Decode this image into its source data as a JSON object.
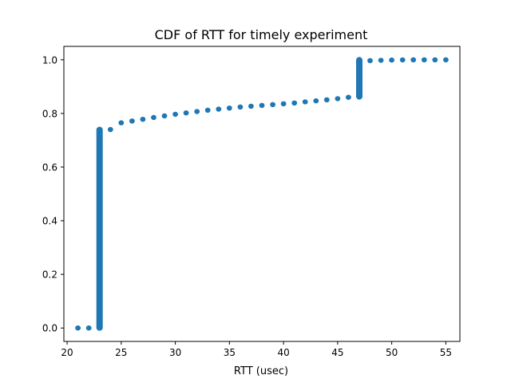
{
  "chart_data": {
    "type": "scatter",
    "title": "CDF of RTT for timely experiment",
    "xlabel": "RTT (usec)",
    "ylabel": "",
    "xlim": [
      19.7,
      56.3
    ],
    "ylim": [
      -0.05,
      1.05
    ],
    "xticks": [
      "20",
      "25",
      "30",
      "35",
      "40",
      "45",
      "50",
      "55"
    ],
    "xtick_values": [
      20,
      25,
      30,
      35,
      40,
      45,
      50,
      55
    ],
    "yticks": [
      "0.0",
      "0.2",
      "0.4",
      "0.6",
      "0.8",
      "1.0"
    ],
    "ytick_values": [
      0.0,
      0.2,
      0.4,
      0.6,
      0.8,
      1.0
    ],
    "grid": false,
    "marker_color": "#1f77b4",
    "series": [
      {
        "points": [
          [
            21,
            0.0
          ],
          [
            22,
            0.0
          ],
          [
            23,
            0.0
          ],
          [
            23,
            0.74
          ],
          [
            24,
            0.74
          ],
          [
            25,
            0.765
          ],
          [
            26,
            0.772
          ],
          [
            27,
            0.778
          ],
          [
            28,
            0.785
          ],
          [
            29,
            0.791
          ],
          [
            30,
            0.797
          ],
          [
            31,
            0.802
          ],
          [
            32,
            0.807
          ],
          [
            33,
            0.812
          ],
          [
            34,
            0.816
          ],
          [
            35,
            0.82
          ],
          [
            36,
            0.824
          ],
          [
            37,
            0.827
          ],
          [
            38,
            0.83
          ],
          [
            39,
            0.833
          ],
          [
            40,
            0.836
          ],
          [
            41,
            0.839
          ],
          [
            42,
            0.843
          ],
          [
            43,
            0.847
          ],
          [
            44,
            0.851
          ],
          [
            45,
            0.855
          ],
          [
            46,
            0.86
          ],
          [
            47,
            0.862
          ],
          [
            47,
            1.0
          ],
          [
            48,
            0.997
          ],
          [
            49,
            0.998
          ],
          [
            50,
            0.999
          ],
          [
            51,
            0.9995
          ],
          [
            52,
            0.9998
          ],
          [
            53,
            0.9999
          ],
          [
            54,
            1.0
          ],
          [
            55,
            1.0
          ]
        ]
      }
    ]
  }
}
